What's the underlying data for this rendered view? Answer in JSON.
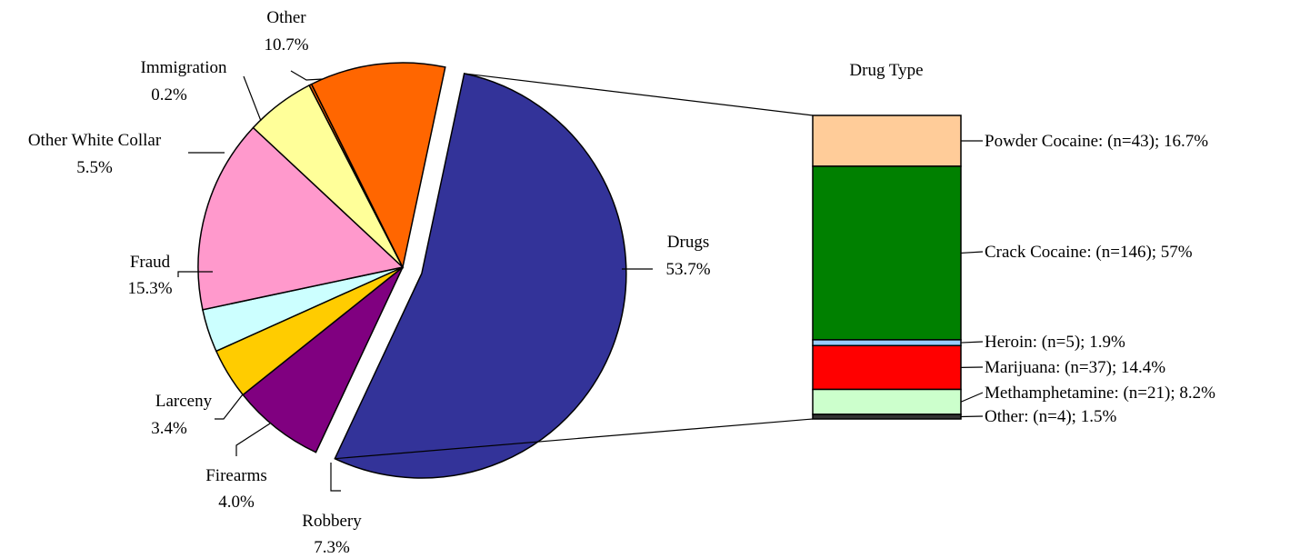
{
  "chart_data": [
    {
      "type": "pie",
      "slices": [
        {
          "key": "drugs",
          "label": "Drugs",
          "pct_label": "53.7%",
          "value": 53.7,
          "color": "#333399",
          "exploded": true
        },
        {
          "key": "robbery",
          "label": "Robbery",
          "pct_label": "7.3%",
          "value": 7.3,
          "color": "#800080"
        },
        {
          "key": "firearms",
          "label": "Firearms",
          "pct_label": "4.0%",
          "value": 4.0,
          "color": "#FFCC00"
        },
        {
          "key": "larceny",
          "label": "Larceny",
          "pct_label": "3.4%",
          "value": 3.4,
          "color": "#CCFFFF"
        },
        {
          "key": "fraud",
          "label": "Fraud",
          "pct_label": "15.3%",
          "value": 15.3,
          "color": "#FF99CC"
        },
        {
          "key": "other-white-collar",
          "label": "Other White Collar",
          "pct_label": "5.5%",
          "value": 5.5,
          "color": "#FFFF99"
        },
        {
          "key": "immigration",
          "label": "Immigration",
          "pct_label": "0.2%",
          "value": 0.2,
          "color": "#FF6600"
        },
        {
          "key": "other",
          "label": "Other",
          "pct_label": "10.7%",
          "value": 10.7,
          "color": "#FF6600"
        }
      ]
    },
    {
      "type": "bar",
      "stacked": true,
      "title": "Drug Type",
      "segments": [
        {
          "key": "powder-cocaine",
          "label": "Powder Cocaine: (n=43); 16.7%",
          "n": 43,
          "value": 16.7,
          "color": "#FFCC99"
        },
        {
          "key": "crack-cocaine",
          "label": "Crack Cocaine: (n=146); 57%",
          "n": 146,
          "value": 57,
          "color": "#008000"
        },
        {
          "key": "heroin",
          "label": "Heroin: (n=5); 1.9%",
          "n": 5,
          "value": 1.9,
          "color": "#99CCFF"
        },
        {
          "key": "marijuana",
          "label": "Marijuana: (n=37); 14.4%",
          "n": 37,
          "value": 14.4,
          "color": "#FF0000"
        },
        {
          "key": "methamphetamine",
          "label": "Methamphetamine: (n=21); 8.2%",
          "n": 21,
          "value": 8.2,
          "color": "#CCFFCC"
        },
        {
          "key": "other",
          "label": "Other: (n=4); 1.5%",
          "n": 4,
          "value": 1.5,
          "color": "#333333"
        }
      ]
    }
  ]
}
